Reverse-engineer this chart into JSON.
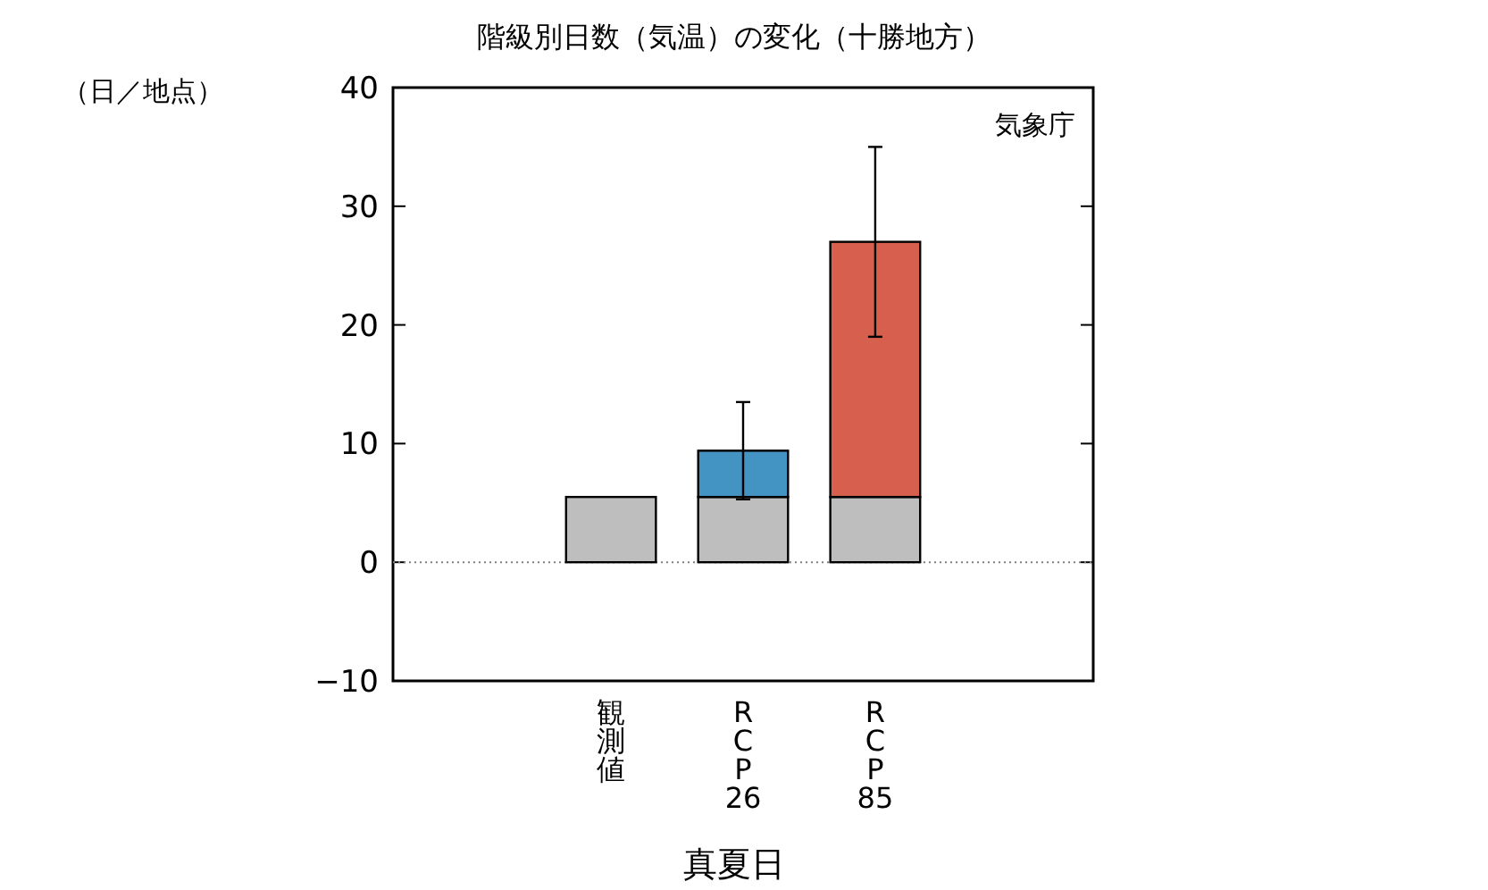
{
  "chart_data": {
    "type": "bar",
    "title": "階級別日数（気温）の変化（十勝地方）",
    "ylabel": "（日／地点）",
    "xlabel": "真夏日",
    "annotations": [
      "気象庁"
    ],
    "categories": [
      "観測値",
      "RCP26",
      "RCP85"
    ],
    "stacked": true,
    "series": [
      {
        "color": "#bebebe",
        "values": [
          5.5,
          5.5,
          5.5
        ]
      },
      {
        "colors": [
          null,
          "#4393c3",
          "#d6604d"
        ],
        "values": [
          null,
          3.9,
          21.5
        ],
        "errors": [
          null,
          [
            5.3,
            13.5
          ],
          [
            19,
            35
          ]
        ]
      }
    ],
    "ylim": [
      -10,
      40
    ],
    "yticks": [
      -10,
      0,
      10,
      20,
      30,
      40
    ],
    "ref_lines": [
      {
        "axis": "y",
        "value": 0,
        "line_style": "dotted",
        "color": "#808080"
      }
    ]
  }
}
